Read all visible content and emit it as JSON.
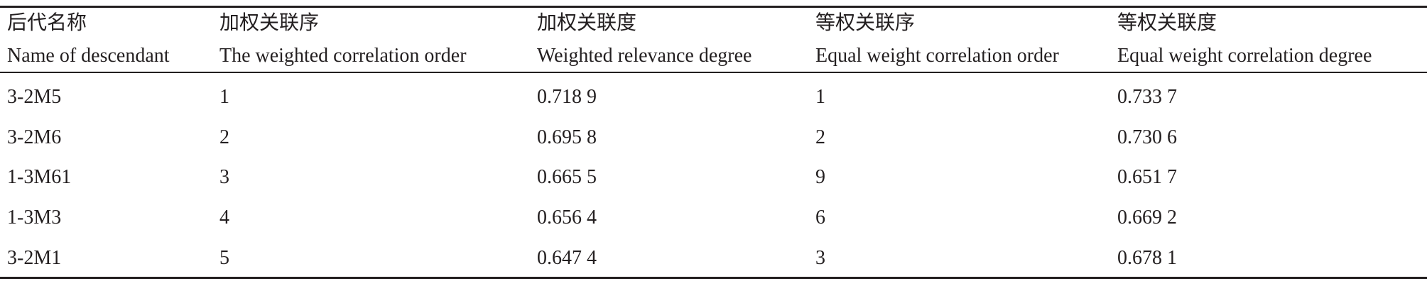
{
  "table": {
    "columns": [
      {
        "zh": "后代名称",
        "en": "Name of descendant"
      },
      {
        "zh": "加权关联序",
        "en": "The weighted correlation order"
      },
      {
        "zh": "加权关联度",
        "en": "Weighted relevance degree"
      },
      {
        "zh": "等权关联序",
        "en": "Equal weight correlation order"
      },
      {
        "zh": "等权关联度",
        "en": "Equal weight correlation degree"
      }
    ],
    "rows": [
      [
        "3-2M5",
        1,
        "0.718 9",
        1,
        "0.733 7"
      ],
      [
        "3-2M6",
        2,
        "0.695 8",
        2,
        "0.730 6"
      ],
      [
        "1-3M61",
        3,
        "0.665 5",
        9,
        "0.651 7"
      ],
      [
        "1-3M3",
        4,
        "0.656 4",
        6,
        "0.669 2"
      ],
      [
        "3-2M1",
        5,
        "0.647 4",
        3,
        "0.678 1"
      ]
    ]
  }
}
